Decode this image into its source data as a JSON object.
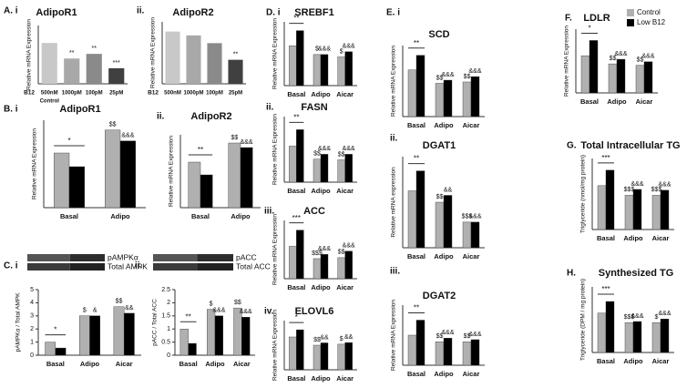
{
  "chart_data": [
    {
      "type": "bar",
      "panel": "A. i",
      "title": "AdipoR1",
      "ylabel": "Relative mRNA Expression",
      "xlabel": "B12",
      "category_note": "Control",
      "categories": [
        "500nM",
        "1000pM",
        "100pM",
        "25pM"
      ],
      "values": [
        1.05,
        0.65,
        0.77,
        0.4
      ],
      "colors": [
        "#c8c8c8",
        "#a8a8a8",
        "#8a8a8a",
        "#404040"
      ],
      "marks": [
        null,
        "**",
        "**",
        "***"
      ],
      "ylim": [
        0,
        1.5
      ]
    },
    {
      "type": "bar",
      "panel": "ii.",
      "title": "AdipoR2",
      "ylabel": "Relative mRNA Expression",
      "xlabel": "B12",
      "categories": [
        "500nM",
        "1000pM",
        "100pM",
        "25pM"
      ],
      "values": [
        1.35,
        1.25,
        1.05,
        0.62
      ],
      "colors": [
        "#c8c8c8",
        "#a8a8a8",
        "#8a8a8a",
        "#404040"
      ],
      "marks": [
        null,
        null,
        null,
        "**"
      ],
      "ylim": [
        0,
        1.6
      ]
    },
    {
      "type": "grouped-bar",
      "panel": "B. i",
      "title": "AdipoR1",
      "ylabel": "Relative mRNA Expression",
      "categories": [
        "Basal",
        "Adipo"
      ],
      "bracket_marks": [
        "*",
        null
      ],
      "series": [
        {
          "color": "#b0b0b0",
          "values": [
            1.0,
            1.42
          ],
          "marks": [
            null,
            "$$"
          ]
        },
        {
          "color": "#000000",
          "values": [
            0.75,
            1.22
          ],
          "marks": [
            null,
            "&&&"
          ]
        }
      ],
      "ylim": [
        0,
        1.6
      ]
    },
    {
      "type": "grouped-bar",
      "panel": "ii.",
      "title": "AdipoR2",
      "ylabel": "Relative mRNA Expression",
      "categories": [
        "Basal",
        "Adipo"
      ],
      "bracket_marks": [
        "**",
        null
      ],
      "series": [
        {
          "color": "#b0b0b0",
          "values": [
            1.0,
            1.42
          ],
          "marks": [
            null,
            "$$"
          ]
        },
        {
          "color": "#000000",
          "values": [
            0.72,
            1.32
          ],
          "marks": [
            null,
            "&&&"
          ]
        }
      ],
      "ylim": [
        0,
        1.6
      ]
    },
    {
      "type": "grouped-bar",
      "panel": "C. i",
      "blot_labels": [
        "pAMPKα",
        "Total AMPK"
      ],
      "ylabel": "pAMPKα / Total AMPK",
      "categories": [
        "Basal",
        "Adipo",
        "Aicar"
      ],
      "bracket_marks": [
        "*",
        null,
        null
      ],
      "series": [
        {
          "color": "#b0b0b0",
          "values": [
            1.0,
            3.0,
            3.7
          ],
          "marks": [
            null,
            "$",
            "$$"
          ]
        },
        {
          "color": "#000000",
          "values": [
            0.55,
            3.0,
            3.2
          ],
          "marks": [
            null,
            "&",
            "&&"
          ]
        }
      ],
      "ylim": [
        0,
        5
      ],
      "yticks": [
        0,
        1,
        2,
        3,
        4,
        5
      ]
    },
    {
      "type": "grouped-bar",
      "panel": "ii.",
      "blot_labels": [
        "pACC",
        "Total ACC"
      ],
      "ylabel": "pACC / Total ACC",
      "categories": [
        "Basal",
        "Adipo",
        "Aicar"
      ],
      "bracket_marks": [
        "**",
        null,
        null
      ],
      "series": [
        {
          "color": "#b0b0b0",
          "values": [
            1.0,
            1.75,
            1.8
          ],
          "marks": [
            null,
            "$",
            "$$"
          ]
        },
        {
          "color": "#000000",
          "values": [
            0.45,
            1.5,
            1.45
          ],
          "marks": [
            null,
            "&&&",
            "&&&"
          ]
        }
      ],
      "ylim": [
        0,
        2.5
      ],
      "yticks": [
        0,
        0.5,
        1,
        1.5,
        2,
        2.5
      ]
    },
    {
      "type": "grouped-bar",
      "panel": "D. i",
      "title": "SREBF1",
      "ylabel": "Relative mRNA Expression",
      "categories": [
        "Basal",
        "Adipo",
        "Aicar"
      ],
      "bracket_marks": [
        "**",
        null,
        null
      ],
      "series": [
        {
          "color": "#b0b0b0",
          "values": [
            1.0,
            0.78,
            0.72
          ],
          "marks": [
            null,
            "$",
            "$"
          ]
        },
        {
          "color": "#000000",
          "values": [
            1.38,
            0.78,
            0.85
          ],
          "marks": [
            null,
            "&&&",
            "&&&"
          ]
        }
      ],
      "ylim": [
        0,
        1.6
      ]
    },
    {
      "type": "grouped-bar",
      "panel": "ii.",
      "title": "FASN",
      "ylabel": "Relative mRNA Expression",
      "categories": [
        "Basal",
        "Adipo",
        "Aicar"
      ],
      "bracket_marks": [
        "**",
        null,
        null
      ],
      "series": [
        {
          "color": "#b0b0b0",
          "values": [
            1.1,
            0.7,
            0.68
          ],
          "marks": [
            null,
            "$$",
            "$$"
          ]
        },
        {
          "color": "#000000",
          "values": [
            1.6,
            0.85,
            0.85
          ],
          "marks": [
            null,
            "&&&",
            "&&&"
          ]
        }
      ],
      "ylim": [
        0,
        2
      ]
    },
    {
      "type": "grouped-bar",
      "panel": "iii.",
      "title": "ACC",
      "ylabel": "Relative mRNA Expression",
      "categories": [
        "Basal",
        "Adipo",
        "Aicar"
      ],
      "bracket_marks": [
        "***",
        null,
        null
      ],
      "series": [
        {
          "color": "#b0b0b0",
          "values": [
            1.0,
            0.62,
            0.65
          ],
          "marks": [
            null,
            "$$$",
            "$$"
          ]
        },
        {
          "color": "#000000",
          "values": [
            1.5,
            0.75,
            0.85
          ],
          "marks": [
            null,
            "&&&",
            "&&&"
          ]
        }
      ],
      "ylim": [
        0,
        1.8
      ]
    },
    {
      "type": "grouped-bar",
      "panel": "iv.",
      "title": "ELOVL6",
      "ylabel": "Relative mRNA Expression",
      "categories": [
        "Basal",
        "Adipo",
        "Aicar"
      ],
      "bracket_marks": [
        "*",
        null,
        null
      ],
      "series": [
        {
          "color": "#b0b0b0",
          "values": [
            1.0,
            0.75,
            0.78
          ],
          "marks": [
            null,
            "$$",
            "$"
          ]
        },
        {
          "color": "#000000",
          "values": [
            1.22,
            0.82,
            0.83
          ],
          "marks": [
            null,
            "&&",
            "&&"
          ]
        }
      ],
      "ylim": [
        0,
        1.5
      ]
    },
    {
      "type": "grouped-bar",
      "panel": "E. i",
      "title": "SCD",
      "ylabel": "Relative mRNA Expression",
      "categories": [
        "Basal",
        "Adipo",
        "Aicar"
      ],
      "bracket_marks": [
        "**",
        null,
        null
      ],
      "series": [
        {
          "color": "#b0b0b0",
          "values": [
            1.05,
            0.75,
            0.78
          ],
          "marks": [
            null,
            "$$",
            "$$"
          ]
        },
        {
          "color": "#000000",
          "values": [
            1.38,
            0.82,
            0.9
          ],
          "marks": [
            null,
            "&&&",
            "&&&"
          ]
        }
      ],
      "ylim": [
        0,
        1.6
      ]
    },
    {
      "type": "grouped-bar",
      "panel": "ii.",
      "title": "DGAT1",
      "ylabel": "Relative mRNA expression",
      "categories": [
        "Basal",
        "Adipo",
        "Aicar"
      ],
      "bracket_marks": [
        "**",
        null,
        null
      ],
      "series": [
        {
          "color": "#b0b0b0",
          "values": [
            1.0,
            0.8,
            0.45
          ],
          "marks": [
            null,
            "$$",
            "$$$"
          ]
        },
        {
          "color": "#000000",
          "values": [
            1.35,
            0.92,
            0.45
          ],
          "marks": [
            null,
            "&&",
            "&&&"
          ]
        }
      ],
      "ylim": [
        0,
        1.6
      ]
    },
    {
      "type": "grouped-bar",
      "panel": "iii.",
      "title": "DGAT2",
      "ylabel": "Relative mRNA Expression",
      "categories": [
        "Basal",
        "Adipo",
        "Aicar"
      ],
      "bracket_marks": [
        "**",
        null,
        null
      ],
      "series": [
        {
          "color": "#b0b0b0",
          "values": [
            1.0,
            0.78,
            0.78
          ],
          "marks": [
            null,
            "$$",
            "$$"
          ]
        },
        {
          "color": "#000000",
          "values": [
            1.5,
            0.9,
            0.85
          ],
          "marks": [
            null,
            "&&&",
            "&&&"
          ]
        }
      ],
      "ylim": [
        0,
        2
      ]
    },
    {
      "type": "grouped-bar",
      "panel": "F.",
      "title": "LDLR",
      "ylabel": "Relative mRNA Expression",
      "categories": [
        "Basal",
        "Adipo",
        "Aicar"
      ],
      "bracket_marks": [
        "*",
        null,
        null
      ],
      "legend": "top-right",
      "series": [
        {
          "name": "Control",
          "color": "#b0b0b0",
          "values": [
            1.05,
            0.82,
            0.78
          ],
          "marks": [
            null,
            "$$",
            "$$"
          ]
        },
        {
          "name": "Low B12",
          "color": "#000000",
          "values": [
            1.48,
            0.95,
            0.88
          ],
          "marks": [
            null,
            "&&&",
            "&&&"
          ]
        }
      ],
      "ylim": [
        0,
        1.8
      ]
    },
    {
      "type": "grouped-bar",
      "panel": "G.",
      "title": "Total Intracellular TG",
      "ylabel": "Triglyceride (nmol/mg protein)",
      "categories": [
        "Basal",
        "Adipo",
        "Aicar"
      ],
      "bracket_marks": [
        "***",
        null,
        null
      ],
      "series": [
        {
          "color": "#b0b0b0",
          "values": [
            1.05,
            0.82,
            0.82
          ],
          "marks": [
            null,
            "$$$",
            "$$$"
          ]
        },
        {
          "color": "#000000",
          "values": [
            1.42,
            0.96,
            0.94
          ],
          "marks": [
            null,
            "&&&",
            "&&&"
          ]
        }
      ],
      "ylim": [
        0,
        1.7
      ]
    },
    {
      "type": "grouped-bar",
      "panel": "H.",
      "title": "Synthesized TG",
      "ylabel": "Triglyceride (DPM / mg protein)",
      "categories": [
        "Basal",
        "Adipo",
        "Aicar"
      ],
      "bracket_marks": [
        "***",
        null,
        null
      ],
      "series": [
        {
          "color": "#b0b0b0",
          "values": [
            1.08,
            0.82,
            0.82
          ],
          "marks": [
            null,
            "$$$",
            "$"
          ]
        },
        {
          "color": "#000000",
          "values": [
            1.4,
            0.85,
            0.92
          ],
          "marks": [
            null,
            "&&&",
            "&&&"
          ]
        }
      ],
      "ylim": [
        0,
        1.8
      ]
    }
  ]
}
